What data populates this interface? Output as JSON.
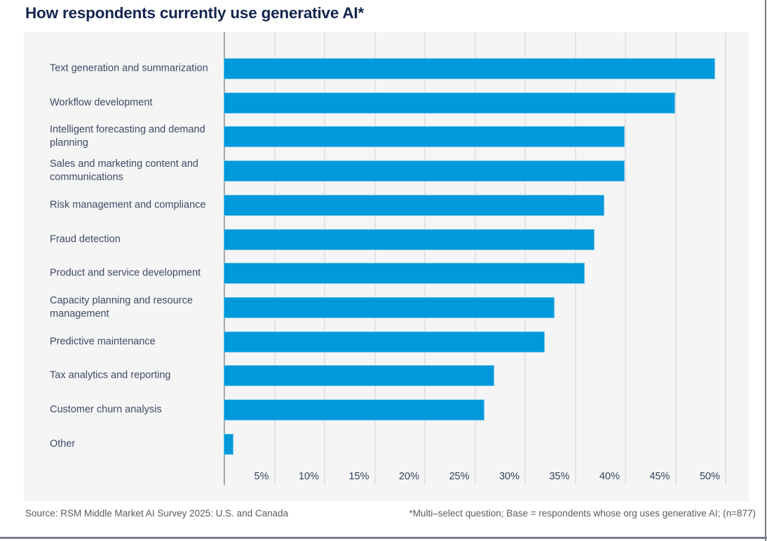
{
  "title": "How respondents currently use generative AI*",
  "chart_data": {
    "type": "bar",
    "orientation": "horizontal",
    "title": "How respondents currently use generative AI*",
    "categories": [
      "Text generation and summarization",
      "Workflow development",
      "Intelligent forecasting and demand planning",
      "Sales and marketing content and communications",
      "Risk management and compliance",
      "Fraud detection",
      "Product and service development",
      "Capacity planning and resource management",
      "Predictive maintenance",
      "Tax analytics and reporting",
      "Customer churn analysis",
      "Other"
    ],
    "values": [
      49,
      45,
      40,
      40,
      38,
      37,
      36,
      33,
      32,
      27,
      26,
      1
    ],
    "unit": "%",
    "x_ticks": [
      "5%",
      "10%",
      "15%",
      "20%",
      "25%",
      "30%",
      "35%",
      "40%",
      "45%",
      "50%"
    ],
    "xlim": [
      0,
      52.5
    ],
    "grid": true,
    "legend": "none",
    "bar_color": "#0099db"
  },
  "footer": {
    "source": "Source: RSM Middle Market AI Survey 2025: U.S. and Canada",
    "footnote": "*Multi–select question; Base = respondents whose org uses generative AI; (n=877)"
  },
  "colors": {
    "title": "#15254e",
    "bar": "#0099db",
    "panel_bg": "#f5f5f6",
    "gridline": "#e4e4e6",
    "axis_line": "#a8a8a8",
    "label_text": "#3d4a63",
    "tick_text": "#31405c",
    "footer_text": "#5b5b5b",
    "rule": "#767c86"
  }
}
